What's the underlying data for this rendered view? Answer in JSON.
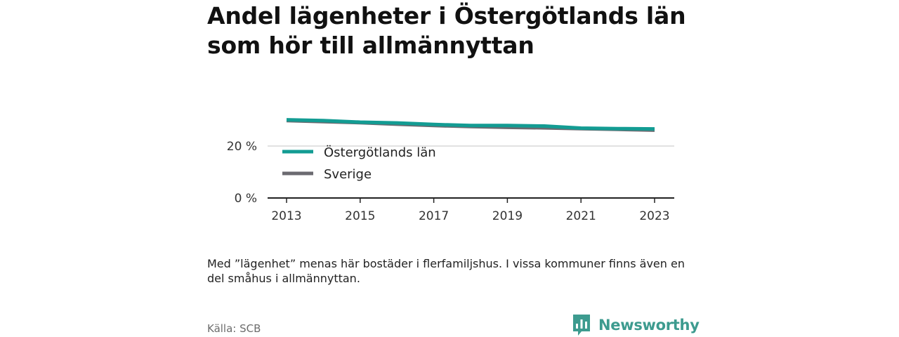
{
  "title": "Andel lägenheter i Östergötlands län som hör till allmännyttan",
  "note": "Med ”lägenhet” menas här bostäder i flerfamiljshus. I vissa kommuner finns även en del småhus i allmännyttan.",
  "source": "Källa: SCB",
  "brand": "Newsworthy",
  "colors": {
    "accent": "#139c93",
    "secondary": "#6b6a70",
    "brand": "#3d9b8f"
  },
  "chart_data": {
    "type": "line",
    "title": "Andel lägenheter i Östergötlands län som hör till allmännyttan",
    "xlabel": "",
    "ylabel": "",
    "x": [
      2013,
      2014,
      2015,
      2016,
      2017,
      2018,
      2019,
      2020,
      2021,
      2022,
      2023
    ],
    "x_ticks": [
      "2013",
      "2015",
      "2017",
      "2019",
      "2021",
      "2023"
    ],
    "x_tick_values": [
      2013,
      2015,
      2017,
      2019,
      2021,
      2023
    ],
    "y_ticks": [
      "0 %",
      "20 %"
    ],
    "y_tick_values": [
      0,
      20
    ],
    "ylim": [
      0,
      30
    ],
    "grid": true,
    "legend_position": "inside-left",
    "series": [
      {
        "name": "Östergötlands län",
        "color": "#139c93",
        "values": [
          30.1,
          29.8,
          29.2,
          28.9,
          28.3,
          27.9,
          27.9,
          27.7,
          26.9,
          26.7,
          26.6
        ]
      },
      {
        "name": "Sverige",
        "color": "#6b6a70",
        "values": [
          29.8,
          29.4,
          29.0,
          28.4,
          27.9,
          27.5,
          27.2,
          27.0,
          26.7,
          26.4,
          26.1
        ]
      }
    ]
  }
}
